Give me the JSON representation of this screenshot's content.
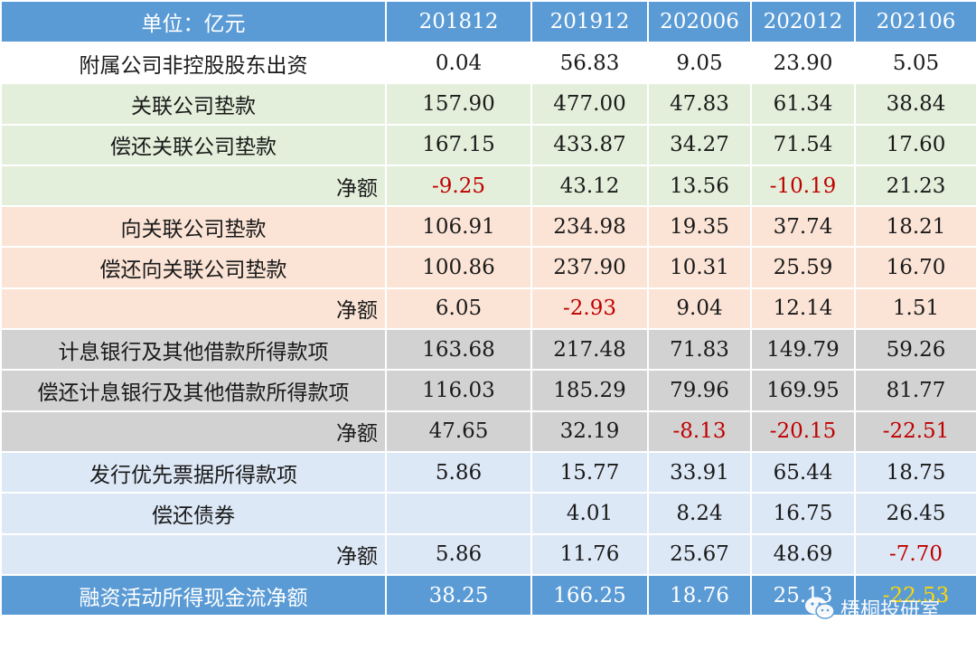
{
  "header": {
    "unit_label": "单位：亿元",
    "periods": [
      "201812",
      "201912",
      "202006",
      "202012",
      "202106"
    ]
  },
  "rows": [
    {
      "label": "附属公司非控股股东出资",
      "values": [
        "0.04",
        "56.83",
        "9.05",
        "23.90",
        "5.05"
      ]
    },
    {
      "label": "关联公司垫款",
      "values": [
        "157.90",
        "477.00",
        "47.83",
        "61.34",
        "38.84"
      ]
    },
    {
      "label": "偿还关联公司垫款",
      "values": [
        "167.15",
        "433.87",
        "34.27",
        "71.54",
        "17.60"
      ]
    },
    {
      "label": "净额",
      "values": [
        "-9.25",
        "43.12",
        "13.56",
        "-10.19",
        "21.23"
      ]
    },
    {
      "label": "向关联公司垫款",
      "values": [
        "106.91",
        "234.98",
        "19.35",
        "37.74",
        "18.21"
      ]
    },
    {
      "label": "偿还向关联公司垫款",
      "values": [
        "100.86",
        "237.90",
        "10.31",
        "25.59",
        "16.70"
      ]
    },
    {
      "label": "净额",
      "values": [
        "6.05",
        "-2.93",
        "9.04",
        "12.14",
        "1.51"
      ]
    },
    {
      "label": "计息银行及其他借款所得款项",
      "values": [
        "163.68",
        "217.48",
        "71.83",
        "149.79",
        "59.26"
      ]
    },
    {
      "label": "偿还计息银行及其他借款所得款项",
      "values": [
        "116.03",
        "185.29",
        "79.96",
        "169.95",
        "81.77"
      ]
    },
    {
      "label": "净额",
      "values": [
        "47.65",
        "32.19",
        "-8.13",
        "-20.15",
        "-22.51"
      ]
    },
    {
      "label": "发行优先票据所得款项",
      "values": [
        "5.86",
        "15.77",
        "33.91",
        "65.44",
        "18.75"
      ]
    },
    {
      "label": "偿还债券",
      "values": [
        "",
        "4.01",
        "8.24",
        "16.75",
        "26.45"
      ]
    },
    {
      "label": "净额",
      "values": [
        "5.86",
        "11.76",
        "25.67",
        "48.69",
        "-7.70"
      ]
    },
    {
      "label": "融资活动所得现金流净额",
      "values": [
        "38.25",
        "166.25",
        "18.76",
        "25.13",
        "-22.53"
      ]
    }
  ],
  "watermark": {
    "text": "梧桐投研室",
    "icon": "wechat-icon"
  },
  "colors": {
    "header_blue": "#5b9bd5",
    "green": "#e3efdb",
    "pink": "#fbe4d6",
    "gray": "#d2d2d2",
    "light_blue": "#dde8f6",
    "negative_red": "#c00000",
    "negative_total": "#ffd700"
  }
}
